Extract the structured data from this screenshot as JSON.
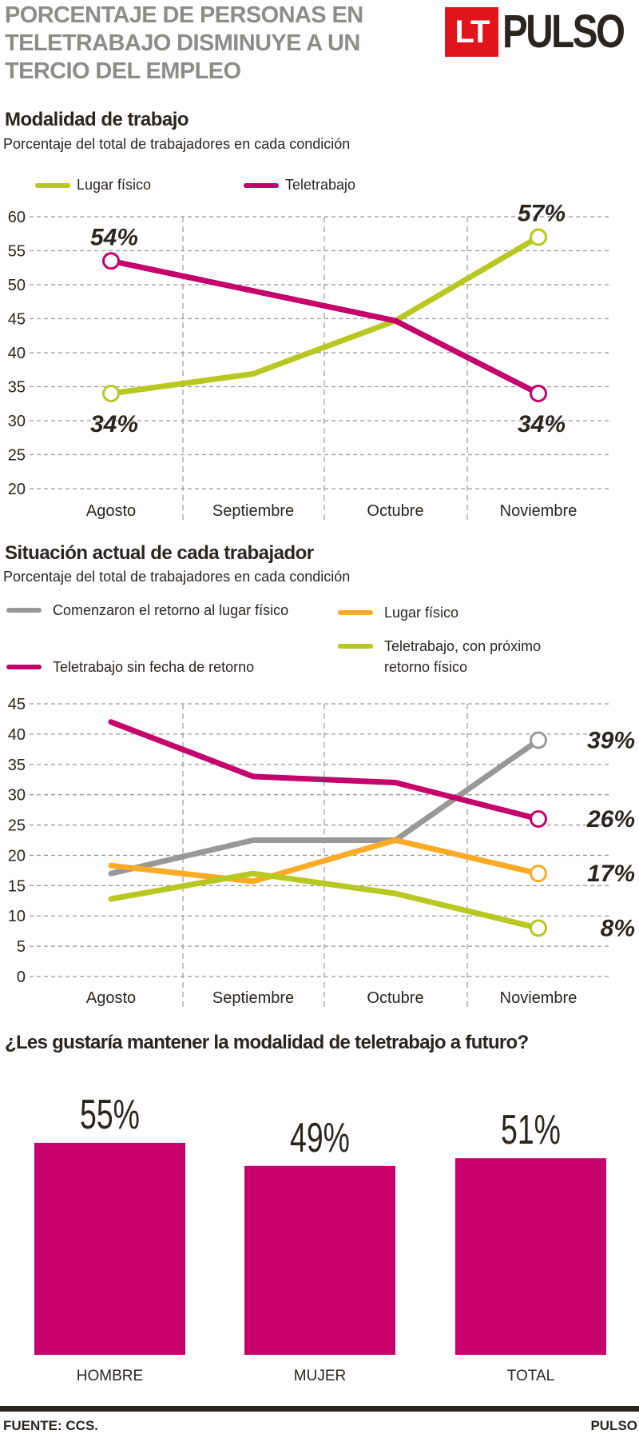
{
  "header": {
    "title_lines": [
      "PORCENTAJE DE PERSONAS EN",
      "TELETRABAJO DISMINUYE A UN",
      "TERCIO DEL EMPLEO"
    ],
    "logo": {
      "lt": "LT",
      "brand": "PULSO"
    }
  },
  "section1": {
    "title": "Modalidad de trabajo",
    "subtitle": "Porcentaje del total de trabajadores en cada condición"
  },
  "section2": {
    "title": "Situación actual de cada trabajador",
    "subtitle": "Porcentaje del total de trabajadores en cada condición"
  },
  "section3": {
    "question": "¿Les gustaría mantener la modalidad de teletrabajo a futuro?"
  },
  "footer": {
    "source": "FUENTE: CCS.",
    "brand": "PULSO"
  },
  "chart_data": [
    {
      "type": "line",
      "categories": [
        "Agosto",
        "Septiembre",
        "Octubre",
        "Noviembre"
      ],
      "ylim": [
        20,
        60
      ],
      "yticks": [
        60,
        55,
        50,
        45,
        40,
        35,
        30,
        25,
        20
      ],
      "grid": true,
      "legend": "top-left",
      "series": [
        {
          "name": "Lugar físico",
          "color": "#b7c820",
          "values": [
            34,
            36.9,
            44.7,
            57
          ],
          "point_labels": [
            "34%",
            null,
            null,
            "57%"
          ]
        },
        {
          "name": "Teletrabajo",
          "color": "#c5006c",
          "values": [
            53.5,
            49.1,
            44.7,
            34
          ],
          "point_labels": [
            "54%",
            null,
            null,
            "34%"
          ]
        }
      ]
    },
    {
      "type": "line",
      "categories": [
        "Agosto",
        "Septiembre",
        "Octubre",
        "Noviembre"
      ],
      "ylim": [
        0,
        45
      ],
      "yticks": [
        45,
        40,
        35,
        30,
        25,
        20,
        15,
        10,
        5,
        0
      ],
      "grid": true,
      "legend": "top",
      "series": [
        {
          "name": "Comenzaron el retorno al lugar físico",
          "color": "#9a9896",
          "values": [
            17,
            22.5,
            22.5,
            39
          ],
          "point_labels": [
            null,
            null,
            null,
            "39%"
          ]
        },
        {
          "name": "Lugar físico",
          "color": "#fbab26",
          "values": [
            18.3,
            15.7,
            22.5,
            17
          ],
          "point_labels": [
            null,
            null,
            null,
            "17%"
          ]
        },
        {
          "name": "Teletrabajo sin fecha de retorno",
          "color": "#c5006c",
          "values": [
            42,
            33,
            32,
            26
          ],
          "point_labels": [
            null,
            null,
            null,
            "26%"
          ]
        },
        {
          "name": "Teletrabajo, con próximo retorno físico",
          "color": "#b7c820",
          "values": [
            12.8,
            17,
            13.7,
            8
          ],
          "point_labels": [
            null,
            null,
            null,
            "8%"
          ]
        }
      ]
    },
    {
      "type": "bar",
      "categories": [
        "HOMBRE",
        "MUJER",
        "TOTAL"
      ],
      "values": [
        55,
        49,
        51
      ],
      "value_labels": [
        "55%",
        "49%",
        "51%"
      ],
      "color": "#c8006d",
      "ylim": [
        0,
        100
      ]
    }
  ]
}
